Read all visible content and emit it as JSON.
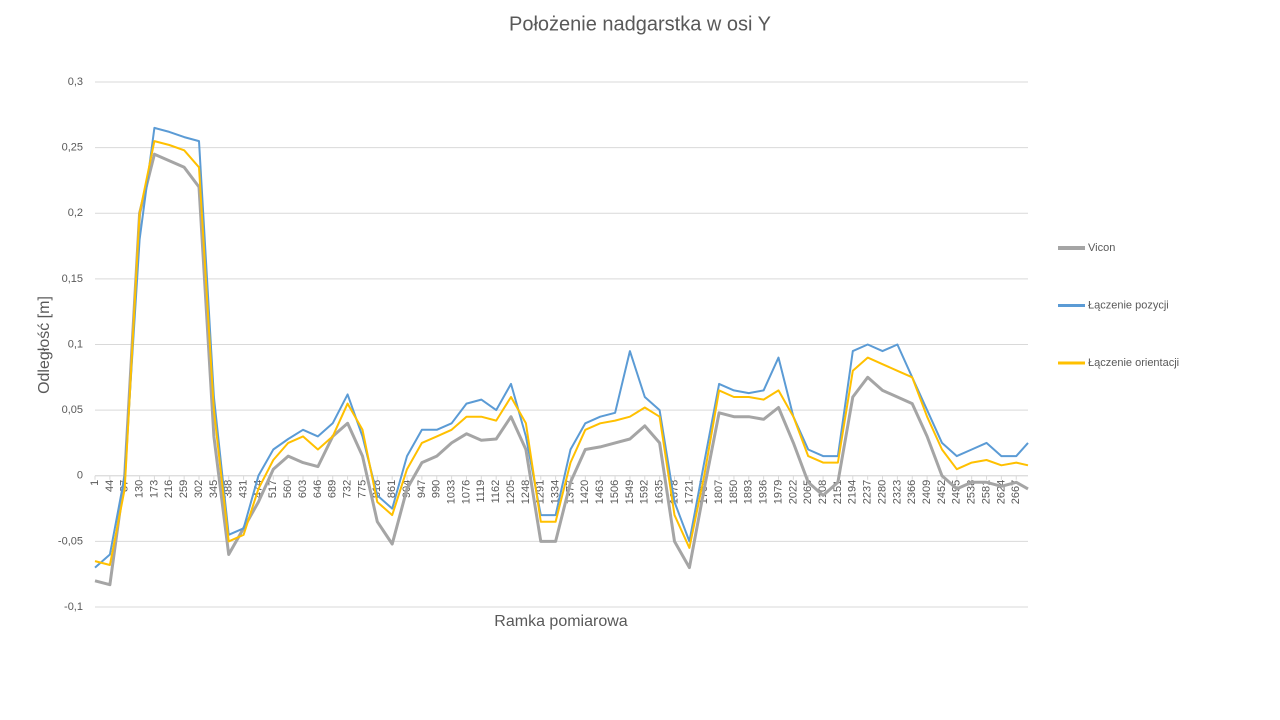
{
  "chart_data": {
    "type": "line",
    "title": "Położenie nadgarstka w osi Y",
    "x_label": "Ramka pomiarowa",
    "y_label": "Odległość [m]",
    "x": [
      1,
      44,
      87,
      130,
      173,
      216,
      259,
      302,
      345,
      388,
      431,
      474,
      517,
      560,
      603,
      646,
      689,
      732,
      775,
      818,
      861,
      904,
      947,
      990,
      1033,
      1076,
      1119,
      1162,
      1205,
      1248,
      1291,
      1334,
      1377,
      1420,
      1463,
      1506,
      1549,
      1592,
      1635,
      1678,
      1721,
      1764,
      1807,
      1850,
      1893,
      1936,
      1979,
      2022,
      2065,
      2108,
      2151,
      2194,
      2237,
      2280,
      2323,
      2366,
      2409,
      2452,
      2495,
      2538,
      2581,
      2624,
      2667,
      2701
    ],
    "series": [
      {
        "name": "Vicon",
        "color": "#a5a5a5",
        "width": 3,
        "values": [
          -0.08,
          -0.083,
          0.0,
          0.2,
          0.245,
          0.24,
          0.235,
          0.22,
          0.03,
          -0.06,
          -0.04,
          -0.02,
          0.005,
          0.015,
          0.01,
          0.007,
          0.03,
          0.04,
          0.015,
          -0.035,
          -0.052,
          -0.01,
          0.01,
          0.015,
          0.025,
          0.032,
          0.027,
          0.028,
          0.045,
          0.02,
          -0.05,
          -0.05,
          -0.005,
          0.02,
          0.022,
          0.025,
          0.028,
          0.038,
          0.025,
          -0.05,
          -0.07,
          -0.01,
          0.048,
          0.045,
          0.045,
          0.043,
          0.052,
          0.025,
          -0.005,
          -0.015,
          -0.005,
          0.06,
          0.075,
          0.065,
          0.06,
          0.055,
          0.03,
          0.0,
          -0.01,
          -0.005,
          -0.005,
          -0.008,
          -0.005,
          -0.01
        ]
      },
      {
        "name": "Łączenie pozycji",
        "color": "#5b9bd5",
        "width": 2,
        "values": [
          -0.07,
          -0.06,
          0.0,
          0.18,
          0.265,
          0.262,
          0.258,
          0.255,
          0.06,
          -0.045,
          -0.04,
          0.0,
          0.02,
          0.028,
          0.035,
          0.03,
          0.04,
          0.062,
          0.03,
          -0.015,
          -0.025,
          0.015,
          0.035,
          0.035,
          0.04,
          0.055,
          0.058,
          0.05,
          0.07,
          0.03,
          -0.03,
          -0.03,
          0.02,
          0.04,
          0.045,
          0.048,
          0.095,
          0.06,
          0.05,
          -0.02,
          -0.05,
          0.01,
          0.07,
          0.065,
          0.063,
          0.065,
          0.09,
          0.045,
          0.02,
          0.015,
          0.015,
          0.095,
          0.1,
          0.095,
          0.1,
          0.075,
          0.05,
          0.025,
          0.015,
          0.02,
          0.025,
          0.015,
          0.015,
          0.025
        ]
      },
      {
        "name": "Łączenie orientacji",
        "color": "#ffc000",
        "width": 2,
        "values": [
          -0.065,
          -0.068,
          -0.01,
          0.2,
          0.255,
          0.252,
          0.248,
          0.235,
          0.05,
          -0.05,
          -0.045,
          -0.01,
          0.012,
          0.025,
          0.03,
          0.02,
          0.03,
          0.055,
          0.035,
          -0.02,
          -0.03,
          0.005,
          0.025,
          0.03,
          0.035,
          0.045,
          0.045,
          0.042,
          0.06,
          0.04,
          -0.035,
          -0.035,
          0.01,
          0.035,
          0.04,
          0.042,
          0.045,
          0.052,
          0.045,
          -0.03,
          -0.055,
          0.0,
          0.065,
          0.06,
          0.06,
          0.058,
          0.065,
          0.045,
          0.015,
          0.01,
          0.01,
          0.08,
          0.09,
          0.085,
          0.08,
          0.075,
          0.045,
          0.02,
          0.005,
          0.01,
          0.012,
          0.008,
          0.01,
          0.008
        ]
      }
    ],
    "xlim": [
      1,
      2701
    ],
    "xticks": [
      1,
      44,
      87,
      130,
      173,
      216,
      259,
      302,
      345,
      388,
      431,
      474,
      517,
      560,
      603,
      646,
      689,
      732,
      775,
      818,
      861,
      904,
      947,
      990,
      1033,
      1076,
      1119,
      1162,
      1205,
      1248,
      1291,
      1334,
      1377,
      1420,
      1463,
      1506,
      1549,
      1592,
      1635,
      1678,
      1721,
      1764,
      1807,
      1850,
      1893,
      1936,
      1979,
      2022,
      2065,
      2108,
      2151,
      2194,
      2237,
      2280,
      2323,
      2366,
      2409,
      2452,
      2495,
      2538,
      2581,
      2624,
      2667
    ],
    "ylim": [
      -0.1,
      0.3
    ],
    "yticks": [
      {
        "value": -0.1,
        "label": "-0,1"
      },
      {
        "value": -0.05,
        "label": "-0,05"
      },
      0,
      {
        "value": 0.05,
        "label": "0,05"
      },
      {
        "value": 0.1,
        "label": "0,1"
      },
      {
        "value": 0.15,
        "label": "0,15"
      },
      {
        "value": 0.2,
        "label": "0,2"
      },
      {
        "value": 0.25,
        "label": "0,25"
      },
      {
        "value": 0.3,
        "label": "0,3"
      }
    ],
    "grid": true,
    "legend": "right"
  }
}
